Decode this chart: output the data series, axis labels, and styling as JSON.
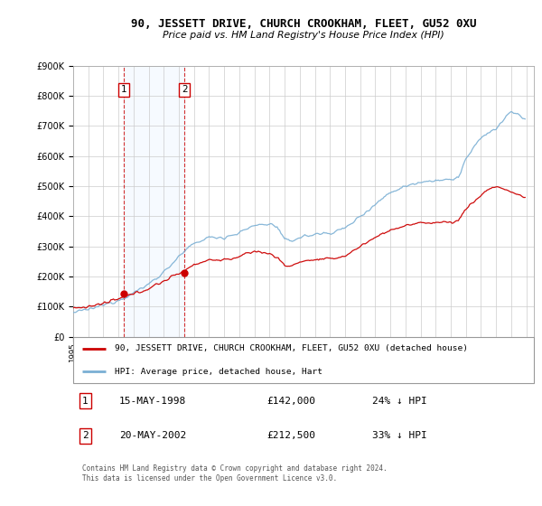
{
  "title": "90, JESSETT DRIVE, CHURCH CROOKHAM, FLEET, GU52 0XU",
  "subtitle": "Price paid vs. HM Land Registry's House Price Index (HPI)",
  "ylim": [
    0,
    900000
  ],
  "yticks": [
    0,
    100000,
    200000,
    300000,
    400000,
    500000,
    600000,
    700000,
    800000,
    900000
  ],
  "ytick_labels": [
    "£0",
    "£100K",
    "£200K",
    "£300K",
    "£400K",
    "£500K",
    "£600K",
    "£700K",
    "£800K",
    "£900K"
  ],
  "xlim_start": 1995.0,
  "xlim_end": 2025.5,
  "plot_bg_color": "#ffffff",
  "fig_bg_color": "#ffffff",
  "red_color": "#cc0000",
  "blue_color": "#7aafd4",
  "span_color": "#ddeeff",
  "transaction1_x": 1998.37,
  "transaction1_y": 142000,
  "transaction2_x": 2002.38,
  "transaction2_y": 212500,
  "legend_line1": "90, JESSETT DRIVE, CHURCH CROOKHAM, FLEET, GU52 0XU (detached house)",
  "legend_line2": "HPI: Average price, detached house, Hart",
  "table_row1_num": "1",
  "table_row1_date": "15-MAY-1998",
  "table_row1_price": "£142,000",
  "table_row1_hpi": "24% ↓ HPI",
  "table_row2_num": "2",
  "table_row2_date": "20-MAY-2002",
  "table_row2_price": "£212,500",
  "table_row2_hpi": "33% ↓ HPI",
  "footer": "Contains HM Land Registry data © Crown copyright and database right 2024.\nThis data is licensed under the Open Government Licence v3.0."
}
